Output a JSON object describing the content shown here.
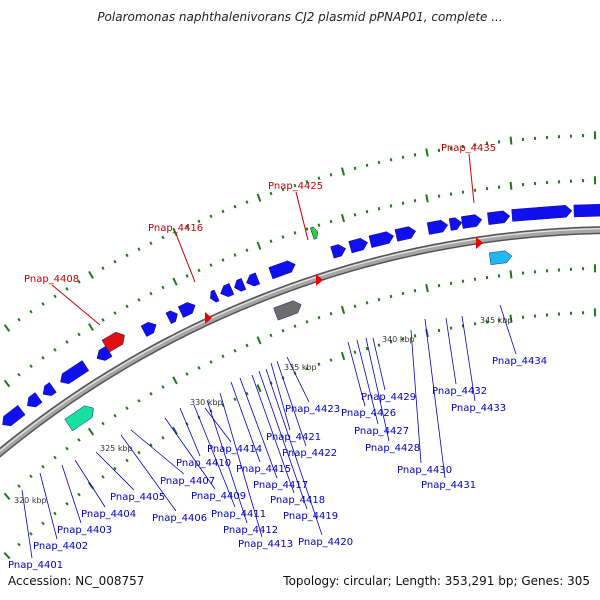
{
  "title": "Polaromonas naphthalenivorans CJ2 plasmid pPNAP01, complete ...",
  "footer": {
    "accession": "Accession: NC_008757",
    "summary": "Topology: circular; Length: 353,291 bp; Genes: 305"
  },
  "colors": {
    "backbone": "#8a8a8a",
    "gene": "#1010ee",
    "label_blue": "#0000cc",
    "label_red": "#cc0000",
    "tick_green": "#1a7a1a"
  },
  "ticks": [
    "320 kbp",
    "325 kbp",
    "330 kbp",
    "335 kbp",
    "340 kbp",
    "345 kbp"
  ],
  "labels_red": [
    "Pnap_4408",
    "Pnap_4416",
    "Pnap_4425",
    "Pnap_4435"
  ],
  "labels_blue": [
    "Pnap_4401",
    "Pnap_4402",
    "Pnap_4403",
    "Pnap_4404",
    "Pnap_4405",
    "Pnap_4406",
    "Pnap_4407",
    "Pnap_4409",
    "Pnap_4410",
    "Pnap_4411",
    "Pnap_4412",
    "Pnap_4413",
    "Pnap_4414",
    "Pnap_4415",
    "Pnap_4417",
    "Pnap_4418",
    "Pnap_4419",
    "Pnap_4420",
    "Pnap_4421",
    "Pnap_4422",
    "Pnap_4423",
    "Pnap_4426",
    "Pnap_4427",
    "Pnap_4428",
    "Pnap_4429",
    "Pnap_4430",
    "Pnap_4431",
    "Pnap_4432",
    "Pnap_4433",
    "Pnap_4434"
  ]
}
